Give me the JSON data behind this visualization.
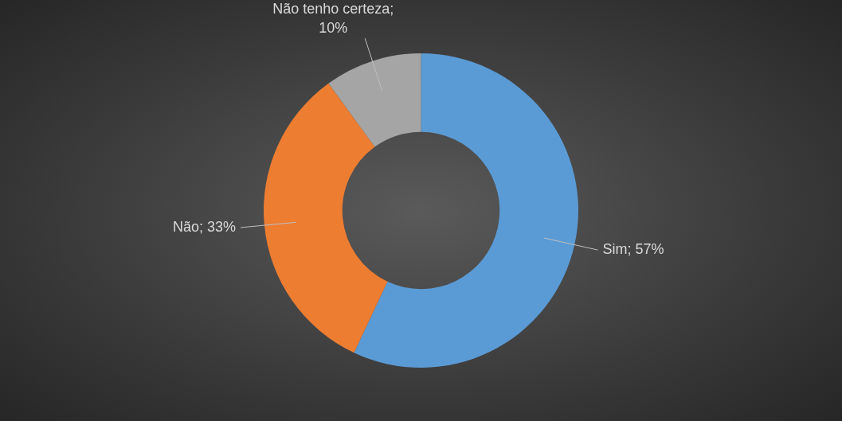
{
  "chart_data": {
    "type": "donut",
    "categories": [
      "Sim",
      "Não",
      "Não tenho certeza"
    ],
    "values": [
      57,
      33,
      10
    ],
    "colors": [
      "#5b9bd5",
      "#ed7d31",
      "#a5a5a5"
    ],
    "value_labels": [
      "; 57%",
      "; 33%",
      "; 10%"
    ],
    "legend": false
  }
}
